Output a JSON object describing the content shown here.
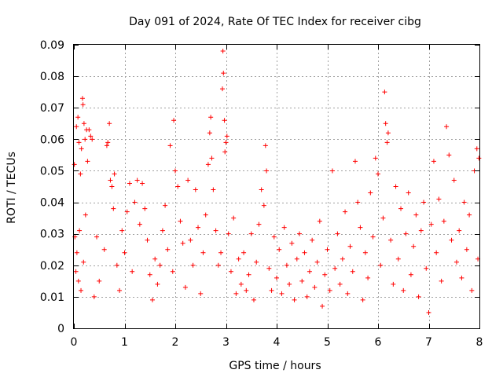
{
  "chart_data": {
    "type": "scatter",
    "title": "Day 091 of 2024, Rate Of TEC Index for receiver cibg",
    "xlabel": "GPS time / hours",
    "ylabel": "ROTI / TECUs",
    "xlim": [
      0,
      8
    ],
    "ylim": [
      0,
      0.09
    ],
    "xticks": [
      0,
      1,
      2,
      3,
      4,
      5,
      6,
      7,
      8
    ],
    "xtick_labels": [
      "0",
      "1",
      "2",
      "3",
      "4",
      "5",
      "6",
      "7",
      "8"
    ],
    "yticks": [
      0,
      0.01,
      0.02,
      0.03,
      0.04,
      0.05,
      0.06,
      0.07,
      0.08,
      0.09
    ],
    "ytick_labels": [
      "0",
      "0.01",
      "0.02",
      "0.03",
      "0.04",
      "0.05",
      "0.06",
      "0.07",
      "0.08",
      "0.09"
    ],
    "grid": true,
    "marker": "+",
    "color": "#ff0000",
    "series": [
      {
        "name": "ROTI",
        "points": [
          [
            0.01,
            0.052
          ],
          [
            0.02,
            0.029
          ],
          [
            0.04,
            0.018
          ],
          [
            0.05,
            0.064
          ],
          [
            0.06,
            0.024
          ],
          [
            0.08,
            0.067
          ],
          [
            0.09,
            0.015
          ],
          [
            0.1,
            0.059
          ],
          [
            0.11,
            0.031
          ],
          [
            0.13,
            0.049
          ],
          [
            0.14,
            0.012
          ],
          [
            0.15,
            0.057
          ],
          [
            0.17,
            0.073
          ],
          [
            0.18,
            0.071
          ],
          [
            0.19,
            0.021
          ],
          [
            0.2,
            0.065
          ],
          [
            0.22,
            0.06
          ],
          [
            0.23,
            0.036
          ],
          [
            0.25,
            0.063
          ],
          [
            0.27,
            0.053
          ],
          [
            0.3,
            0.063
          ],
          [
            0.33,
            0.061
          ],
          [
            0.36,
            0.06
          ],
          [
            0.4,
            0.01
          ],
          [
            0.45,
            0.029
          ],
          [
            0.5,
            0.015
          ],
          [
            0.6,
            0.025
          ],
          [
            0.65,
            0.058
          ],
          [
            0.67,
            0.059
          ],
          [
            0.7,
            0.065
          ],
          [
            0.72,
            0.047
          ],
          [
            0.75,
            0.045
          ],
          [
            0.78,
            0.038
          ],
          [
            0.8,
            0.049
          ],
          [
            0.85,
            0.02
          ],
          [
            0.9,
            0.012
          ],
          [
            0.95,
            0.031
          ],
          [
            1.0,
            0.024
          ],
          [
            1.05,
            0.037
          ],
          [
            1.1,
            0.046
          ],
          [
            1.15,
            0.018
          ],
          [
            1.2,
            0.04
          ],
          [
            1.25,
            0.047
          ],
          [
            1.3,
            0.033
          ],
          [
            1.35,
            0.046
          ],
          [
            1.4,
            0.038
          ],
          [
            1.45,
            0.028
          ],
          [
            1.5,
            0.017
          ],
          [
            1.55,
            0.009
          ],
          [
            1.6,
            0.022
          ],
          [
            1.65,
            0.014
          ],
          [
            1.7,
            0.02
          ],
          [
            1.75,
            0.031
          ],
          [
            1.8,
            0.039
          ],
          [
            1.85,
            0.025
          ],
          [
            1.9,
            0.058
          ],
          [
            1.95,
            0.018
          ],
          [
            1.97,
            0.066
          ],
          [
            2.0,
            0.05
          ],
          [
            2.05,
            0.045
          ],
          [
            2.1,
            0.034
          ],
          [
            2.15,
            0.027
          ],
          [
            2.2,
            0.013
          ],
          [
            2.25,
            0.047
          ],
          [
            2.3,
            0.028
          ],
          [
            2.35,
            0.02
          ],
          [
            2.4,
            0.044
          ],
          [
            2.45,
            0.032
          ],
          [
            2.5,
            0.011
          ],
          [
            2.55,
            0.024
          ],
          [
            2.6,
            0.036
          ],
          [
            2.65,
            0.052
          ],
          [
            2.68,
            0.062
          ],
          [
            2.7,
            0.067
          ],
          [
            2.72,
            0.054
          ],
          [
            2.75,
            0.044
          ],
          [
            2.8,
            0.031
          ],
          [
            2.85,
            0.02
          ],
          [
            2.9,
            0.024
          ],
          [
            2.93,
            0.076
          ],
          [
            2.94,
            0.088
          ],
          [
            2.95,
            0.081
          ],
          [
            2.97,
            0.066
          ],
          [
            2.98,
            0.056
          ],
          [
            3.0,
            0.059
          ],
          [
            3.02,
            0.061
          ],
          [
            3.05,
            0.03
          ],
          [
            3.1,
            0.018
          ],
          [
            3.15,
            0.035
          ],
          [
            3.2,
            0.011
          ],
          [
            3.25,
            0.022
          ],
          [
            3.3,
            0.014
          ],
          [
            3.35,
            0.024
          ],
          [
            3.4,
            0.012
          ],
          [
            3.45,
            0.017
          ],
          [
            3.5,
            0.03
          ],
          [
            3.55,
            0.009
          ],
          [
            3.6,
            0.021
          ],
          [
            3.65,
            0.033
          ],
          [
            3.7,
            0.044
          ],
          [
            3.75,
            0.039
          ],
          [
            3.78,
            0.058
          ],
          [
            3.8,
            0.05
          ],
          [
            3.85,
            0.019
          ],
          [
            3.9,
            0.012
          ],
          [
            3.95,
            0.029
          ],
          [
            4.0,
            0.016
          ],
          [
            4.05,
            0.025
          ],
          [
            4.1,
            0.011
          ],
          [
            4.15,
            0.032
          ],
          [
            4.2,
            0.02
          ],
          [
            4.25,
            0.014
          ],
          [
            4.3,
            0.027
          ],
          [
            4.35,
            0.009
          ],
          [
            4.4,
            0.022
          ],
          [
            4.45,
            0.03
          ],
          [
            4.5,
            0.015
          ],
          [
            4.55,
            0.024
          ],
          [
            4.6,
            0.01
          ],
          [
            4.65,
            0.018
          ],
          [
            4.7,
            0.028
          ],
          [
            4.75,
            0.013
          ],
          [
            4.8,
            0.021
          ],
          [
            4.85,
            0.034
          ],
          [
            4.9,
            0.007
          ],
          [
            4.95,
            0.017
          ],
          [
            5.0,
            0.025
          ],
          [
            5.05,
            0.012
          ],
          [
            5.1,
            0.05
          ],
          [
            5.15,
            0.019
          ],
          [
            5.2,
            0.03
          ],
          [
            5.25,
            0.014
          ],
          [
            5.3,
            0.022
          ],
          [
            5.35,
            0.037
          ],
          [
            5.4,
            0.011
          ],
          [
            5.45,
            0.026
          ],
          [
            5.5,
            0.018
          ],
          [
            5.55,
            0.053
          ],
          [
            5.6,
            0.04
          ],
          [
            5.65,
            0.032
          ],
          [
            5.7,
            0.009
          ],
          [
            5.75,
            0.024
          ],
          [
            5.8,
            0.016
          ],
          [
            5.85,
            0.043
          ],
          [
            5.9,
            0.029
          ],
          [
            5.95,
            0.054
          ],
          [
            6.0,
            0.049
          ],
          [
            6.05,
            0.02
          ],
          [
            6.1,
            0.035
          ],
          [
            6.13,
            0.075
          ],
          [
            6.15,
            0.065
          ],
          [
            6.18,
            0.059
          ],
          [
            6.2,
            0.062
          ],
          [
            6.25,
            0.028
          ],
          [
            6.3,
            0.014
          ],
          [
            6.35,
            0.045
          ],
          [
            6.4,
            0.022
          ],
          [
            6.45,
            0.038
          ],
          [
            6.5,
            0.012
          ],
          [
            6.55,
            0.03
          ],
          [
            6.6,
            0.043
          ],
          [
            6.65,
            0.017
          ],
          [
            6.7,
            0.026
          ],
          [
            6.75,
            0.036
          ],
          [
            6.8,
            0.01
          ],
          [
            6.85,
            0.031
          ],
          [
            6.9,
            0.04
          ],
          [
            6.95,
            0.019
          ],
          [
            7.0,
            0.005
          ],
          [
            7.05,
            0.033
          ],
          [
            7.1,
            0.053
          ],
          [
            7.15,
            0.024
          ],
          [
            7.2,
            0.041
          ],
          [
            7.25,
            0.015
          ],
          [
            7.3,
            0.034
          ],
          [
            7.35,
            0.064
          ],
          [
            7.4,
            0.055
          ],
          [
            7.45,
            0.028
          ],
          [
            7.5,
            0.047
          ],
          [
            7.55,
            0.021
          ],
          [
            7.6,
            0.031
          ],
          [
            7.65,
            0.016
          ],
          [
            7.7,
            0.04
          ],
          [
            7.75,
            0.025
          ],
          [
            7.8,
            0.036
          ],
          [
            7.85,
            0.012
          ],
          [
            7.9,
            0.05
          ],
          [
            7.95,
            0.057
          ],
          [
            7.97,
            0.022
          ],
          [
            7.99,
            0.054
          ]
        ]
      }
    ]
  }
}
